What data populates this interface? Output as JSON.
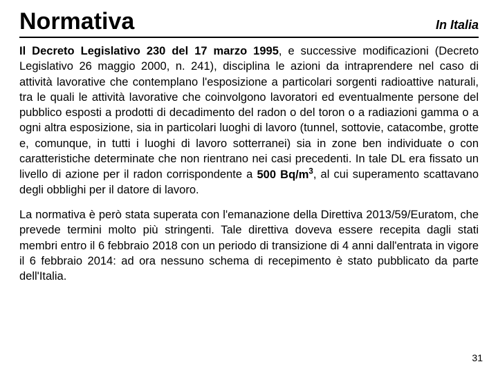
{
  "header": {
    "title": "Normativa",
    "subtitle": "In Italia"
  },
  "p1": {
    "t1": "Il Decreto Legislativo 230 del 17 marzo 1995",
    "t2": ", e successive modificazioni (Decreto Legislativo 26 maggio 2000, n. 241), disciplina le azioni da intraprendere nel caso di attività lavorative che contemplano l'esposizione a particolari sorgenti radioattive naturali, tra le quali le attività lavorative che coinvolgono lavoratori ed eventualmente persone del pubblico esposti a prodotti di decadimento del radon o del toron o a radiazioni gamma o a ogni altra esposizione, sia in particolari luoghi di lavoro (tunnel, sottovie, catacombe, grotte e, comunque, in tutti i luoghi di lavoro sotterranei) sia in zone ben individuate o con caratteristiche determinate che non rientrano nei casi precedenti. In tale DL era fissato un livello di azione per il radon corrispondente a ",
    "t3": "500 Bq/m",
    "t3sup": "3",
    "t4": ", al cui superamento scattavano degli obblighi per il datore di lavoro."
  },
  "p2": {
    "t1": "La normativa è però stata superata con l'emanazione della Direttiva 2013/59/Euratom, che prevede termini molto più stringenti. Tale direttiva doveva essere recepita dagli stati membri entro il 6 febbraio 2018 con un periodo di transizione di 4 anni dall'entrata in vigore il 6 febbraio 2014: ad ora nessuno schema di recepimento è stato pubblicato da parte dell'Italia."
  },
  "pageNumber": "31"
}
